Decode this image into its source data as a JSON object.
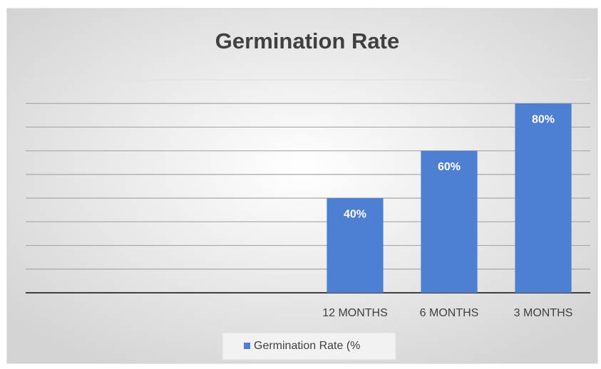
{
  "chart_data": {
    "type": "bar",
    "title": "Germination Rate",
    "categories": [
      null,
      null,
      null,
      "12 MONTHS",
      "6 MONTHS",
      "3 MONTHS"
    ],
    "series": [
      {
        "name": "Germination Rate (%",
        "color": "#4f7fd1",
        "values": [
          null,
          null,
          null,
          40,
          60,
          80
        ],
        "value_labels": [
          null,
          null,
          null,
          "40%",
          "60%",
          "80%"
        ]
      }
    ],
    "ylim": [
      0,
      90
    ],
    "yticks": [
      0,
      10,
      20,
      30,
      40,
      50,
      60,
      70,
      80,
      90
    ],
    "grid": true,
    "legend": "bottom"
  }
}
